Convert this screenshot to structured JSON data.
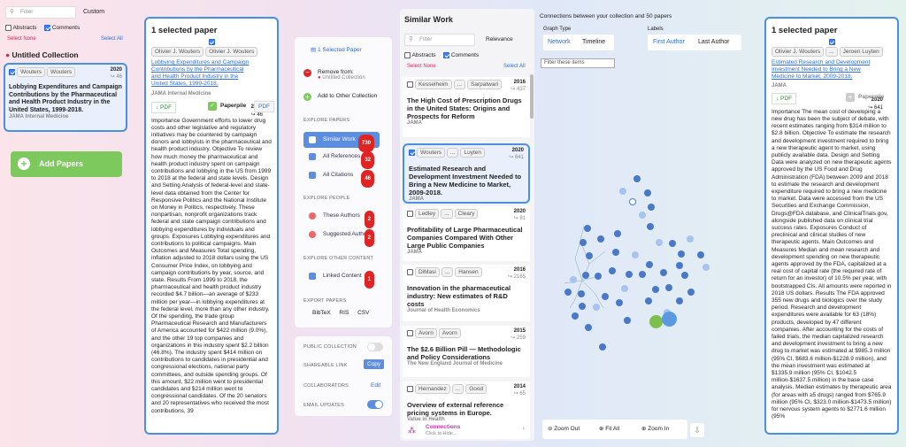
{
  "left": {
    "filter_placeholder": "Filter",
    "custom": "Custom",
    "abstracts": "Abstracts",
    "comments": "Comments",
    "select_none": "Select None",
    "select_all": "Select All",
    "collection": "Untitled Collection",
    "paper": {
      "authors": [
        "Wouters",
        "Wouters"
      ],
      "year": "2020",
      "cites": "↪ 46",
      "title": "Lobbying Expenditures and Campaign Contributions by the Pharmaceutical and Health Product Industry in the United States, 1999-2018.",
      "journal": "JAMA Internal Medicine"
    },
    "add_papers": "Add Papers"
  },
  "detail1": {
    "heading": "1 selected paper",
    "authors": [
      "Olivier J. Wouters",
      "Olivier J. Wouters"
    ],
    "title": "Lobbying Expenditures and Campaign Contributions by the Pharmaceutical and Health Product Industry in the United States, 1999-2018.",
    "year": "2020",
    "cites": "↪ 46",
    "journal": "JAMA Internal Medicine",
    "pdf": "↓ PDF",
    "paperpile": "Paperpile",
    "pdf2": "PDF",
    "abstract": "Importance Government efforts to lower drug costs and other legislative and regulatory initiatives may be countered by campaign donors and lobbyists in the pharmaceutical and health product industry. Objective To review how much money the pharmaceutical and health product industry spent on campaign contributions and lobbying in the US from 1999 to 2018 at the federal and state levels. Design and Setting Analysis of federal-level and state-level data obtained from the Center for Responsive Politics and the National Institute on Money in Politics, respectively. These nonpartisan, nonprofit organizations track federal and state campaign contributions and lobbying expenditures by individuals and groups. Exposures Lobbying expenditures and contributions to political campaigns. Main Outcomes and Measures Total spending, inflation adjusted to 2018 dollars using the US Consumer Price Index, on lobbying and campaign contributions by year, source, and state. Results From 1999 to 2018, the pharmaceutical and health product industry recorded $4.7 billion—an average of $233 million per year—in lobbying expenditures at the federal level, more than any other industry. Of the spending, the trade group Pharmaceutical Research and Manufacturers of America accounted for $422 million (9.0%), and the other 19 top companies and organizations in this industry spent $2.2 billion (46.8%). The industry spent $414 million on contributions to candidates in presidential and congressional elections, national party committees, and outside spending groups. Of this amount, $22 million went to presidential candidates and $214 million went to congressional candidates. Of the 20 senators and 20 representatives who received the most contributions, 39"
  },
  "menu": {
    "selected": "1 Selected Paper",
    "remove_from": "Remove from:",
    "remove_target": "Untitled Collection",
    "add_other": "Add to Other Collection",
    "explore_papers": "EXPLORE PAPERS",
    "similar": "Similar Work",
    "similar_n": "730",
    "all_refs": "All References",
    "all_refs_n": "32",
    "all_cites": "All Citations",
    "all_cites_n": "46",
    "explore_people": "EXPLORE PEOPLE",
    "these_authors": "These Authors",
    "these_authors_n": "2",
    "suggested": "Suggested Authors",
    "suggested_n": "2",
    "explore_other": "EXPLORE OTHER CONTENT",
    "linked": "Linked Content",
    "linked_n": "1",
    "export": "EXPORT PAPERS",
    "bibtex": "BibTeX",
    "ris": "RIS",
    "csv": "CSV",
    "public": "PUBLIC COLLECTION",
    "share": "SHAREABLE LINK",
    "copy": "Copy",
    "collab": "COLLABORATORS",
    "edit": "Edit",
    "email": "EMAIL UPDATES"
  },
  "similar": {
    "heading": "Similar Work",
    "filter": "Filter",
    "relevance": "Relevance",
    "abstracts": "Abstracts",
    "comments": "Comments",
    "select_none": "Select None",
    "select_all": "Select All",
    "papers": [
      {
        "a": [
          "Kesselheim",
          "...",
          "Sarpatwari"
        ],
        "year": "2016",
        "cites": "↪ 437",
        "title": "The High Cost of Prescription Drugs in the United States: Origins and Prospects for Reform",
        "journal": "JAMA"
      },
      {
        "a": [
          "Wouters",
          "...",
          "Luyten"
        ],
        "year": "2020",
        "cites": "↪ 641",
        "title": "Estimated Research and Development Investment Needed to Bring a New Medicine to Market, 2009-2018.",
        "journal": "JAMA"
      },
      {
        "a": [
          "Ledley",
          "...",
          "Cleary"
        ],
        "year": "2020",
        "cites": "↪ 81",
        "title": "Profitability of Large Pharmaceutical Companies Compared With Other Large Public Companies",
        "journal": "JAMA"
      },
      {
        "a": [
          "DiMasi",
          "...",
          "Hansen"
        ],
        "year": "2016",
        "cites": "↪ 2165",
        "title": "Innovation in the pharmaceutical industry: New estimates of R&D costs",
        "journal": "Journal of Health Economics"
      },
      {
        "a": [
          "Avorn",
          "Avorn"
        ],
        "year": "2015",
        "cites": "↪ 259",
        "title": "The $2.6 Billion Pill — Methodologic and Policy Considerations",
        "journal": "The New England Journal of Medicine"
      },
      {
        "a": [
          "Hernandez",
          "...",
          "Good"
        ],
        "year": "2014",
        "cites": "↪ 65",
        "title": "Overview of external reference pricing systems in Europe.",
        "journal": "Value in Health"
      }
    ],
    "connections": "Connections",
    "connections_sub": "Click to Hide..."
  },
  "graph": {
    "title": "Connections between your collection and 50 papers",
    "graph_type": "Graph Type",
    "network": "Network",
    "timeline": "Timeline",
    "labels": "Labels",
    "first_author": "First Author",
    "last_author": "Last Author",
    "filter": "Filter these items",
    "zoom_out": "Zoom Out",
    "fit_all": "Fit All",
    "zoom_in": "Zoom In"
  },
  "detail2": {
    "heading": "1 selected paper",
    "authors": [
      "Olivier J. Wouters",
      "...",
      "Jeroen Luyten"
    ],
    "title": "Estimated Research and Development Investment Needed to Bring a New Medicine to Market, 2009-2018.",
    "year": "2020",
    "cites": "↪ 641",
    "journal": "JAMA",
    "pdf": "↓ PDF",
    "paperpile": "Paperpile",
    "abstract": "Importance The mean cost of developing a new drug has been the subject of debate, with recent estimates ranging from $314 million to $2.8 billion. Objective To estimate the research and development investment required to bring a new therapeutic agent to market, using publicly available data. Design and Setting Data were analyzed on new therapeutic agents approved by the US Food and Drug Administration (FDA) between 2009 and 2018 to estimate the research and development expenditure required to bring a new medicine to market. Data were accessed from the US Securities and Exchange Commission, Drugs@FDA database, and ClinicalTrials.gov, alongside published data on clinical trial success rates. Exposures Conduct of preclinical and clinical studies of new therapeutic agents. Main Outcomes and Measures Median and mean research and development spending on new therapeutic agents approved by the FDA, capitalized at a real cost of capital rate (the required rate of return for an investor) of 10.5% per year, with bootstrapped CIs. All amounts were reported in 2018 US dollars. Results The FDA approved 355 new drugs and biologics over the study period. Research and development expenditures were available for 63 (18%) products, developed by 47 different companies. After accounting for the costs of failed trials, the median capitalized research and development investment to bring a new drug to market was estimated at $985.3 million (95% CI, $683.6 million-$1228.9 million), and the mean investment was estimated at $1335.9 million (95% CI, $1042.5 million-$1637.5 million) in the base case analysis. Median estimates by therapeutic area (for areas with ≥5 drugs) ranged from $765.9 million (95% CI, $323.0 million-$1473.5 million) for nervous system agents to $2771.6 million (95%"
  }
}
